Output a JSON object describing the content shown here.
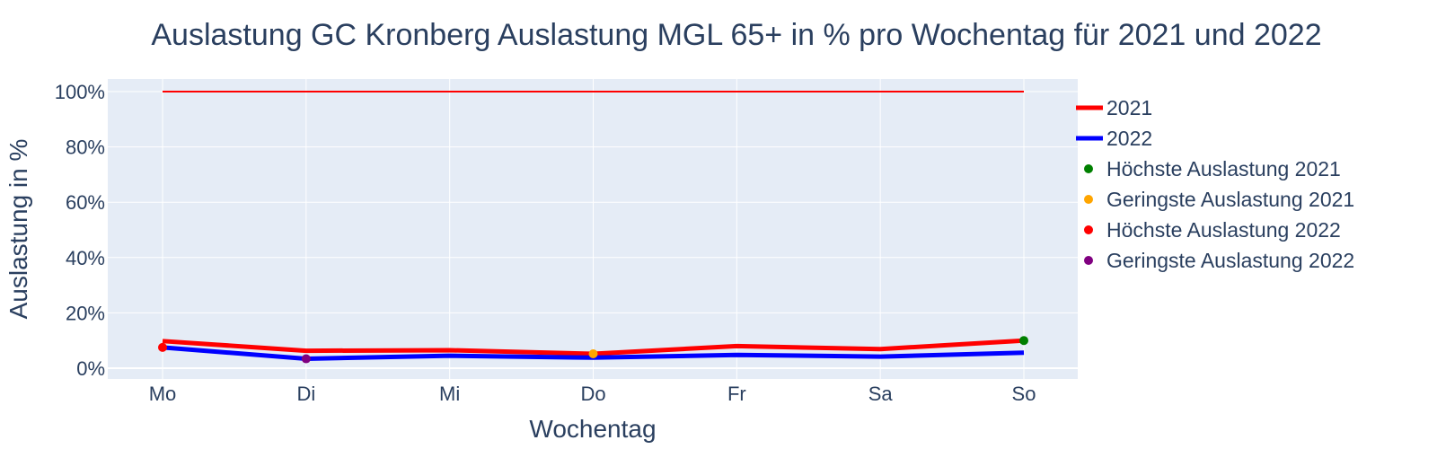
{
  "chart_data": {
    "type": "line",
    "title": "Auslastung GC Kronberg Auslastung MGL 65+ in % pro Wochentag für 2021 und 2022",
    "xlabel": "Wochentag",
    "ylabel": "Auslastung in %",
    "ylim": [
      -3.5,
      100
    ],
    "yticks": [
      0,
      20,
      40,
      60,
      80,
      100
    ],
    "ytick_labels": [
      "0%",
      "20%",
      "40%",
      "60%",
      "80%",
      "100%"
    ],
    "categories": [
      "Mo",
      "Di",
      "Mi",
      "Do",
      "Fr",
      "Sa",
      "So"
    ],
    "grid": true,
    "legend_position": "right",
    "reference_line": {
      "y": 100,
      "color": "#ff0000"
    },
    "series": [
      {
        "name": "2021",
        "color": "#ff0000",
        "values": [
          9.8,
          6.3,
          6.5,
          5.2,
          8.0,
          6.9,
          10.0
        ]
      },
      {
        "name": "2022",
        "color": "#0000ff",
        "values": [
          7.5,
          3.4,
          4.5,
          3.8,
          4.8,
          4.2,
          5.6
        ]
      }
    ],
    "markers": [
      {
        "name": "Höchste Auslastung 2021",
        "color": "#008000",
        "x": "So",
        "y": 10.0
      },
      {
        "name": "Geringste Auslastung 2021",
        "color": "#ffa500",
        "x": "Do",
        "y": 5.2
      },
      {
        "name": "Höchste Auslastung 2022",
        "color": "#ff0000",
        "x": "Mo",
        "y": 7.5
      },
      {
        "name": "Geringste Auslastung 2022",
        "color": "#800080",
        "x": "Di",
        "y": 3.4
      }
    ]
  }
}
